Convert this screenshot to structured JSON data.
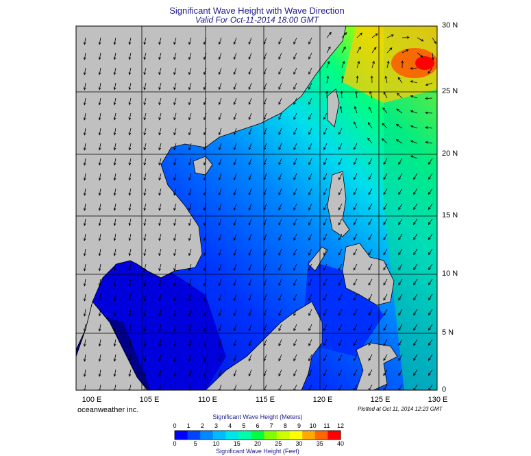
{
  "header": {
    "title": "Significant Wave Height with Wave Direction",
    "subtitle": "Valid For Oct-11-2014 18:00 GMT"
  },
  "map": {
    "lat_labels": [
      "30 N",
      "25 N",
      "20 N",
      "15 N",
      "10 N",
      "5 N",
      "0"
    ],
    "lon_labels": [
      "100 E",
      "105 E",
      "110 E",
      "115 E",
      "120 E",
      "125 E",
      "130 E"
    ],
    "land_color": "#c0c0c0",
    "grid_color": "#000000",
    "arrow_color": "#000000"
  },
  "footer": {
    "credit": "oceanweather inc.",
    "plotted": "Plotted at Oct 11, 2014 12:23 GMT"
  },
  "colorbar": {
    "title_top": "Significant Wave Height (Meters)",
    "title_bottom": "Significant Wave Height (Feet)",
    "meters": [
      "0",
      "1",
      "2",
      "3",
      "4",
      "5",
      "6",
      "7",
      "8",
      "9",
      "10",
      "11",
      "12"
    ],
    "feet": [
      "0",
      "5",
      "10",
      "15",
      "20",
      "25",
      "30",
      "35",
      "40"
    ],
    "colors": [
      "#0000ff",
      "#0044ff",
      "#0088ff",
      "#00bbff",
      "#00e5e5",
      "#00ffaa",
      "#00ff40",
      "#80ff00",
      "#ccff00",
      "#ffff00",
      "#ffaa00",
      "#ff6600",
      "#ff0000"
    ]
  }
}
